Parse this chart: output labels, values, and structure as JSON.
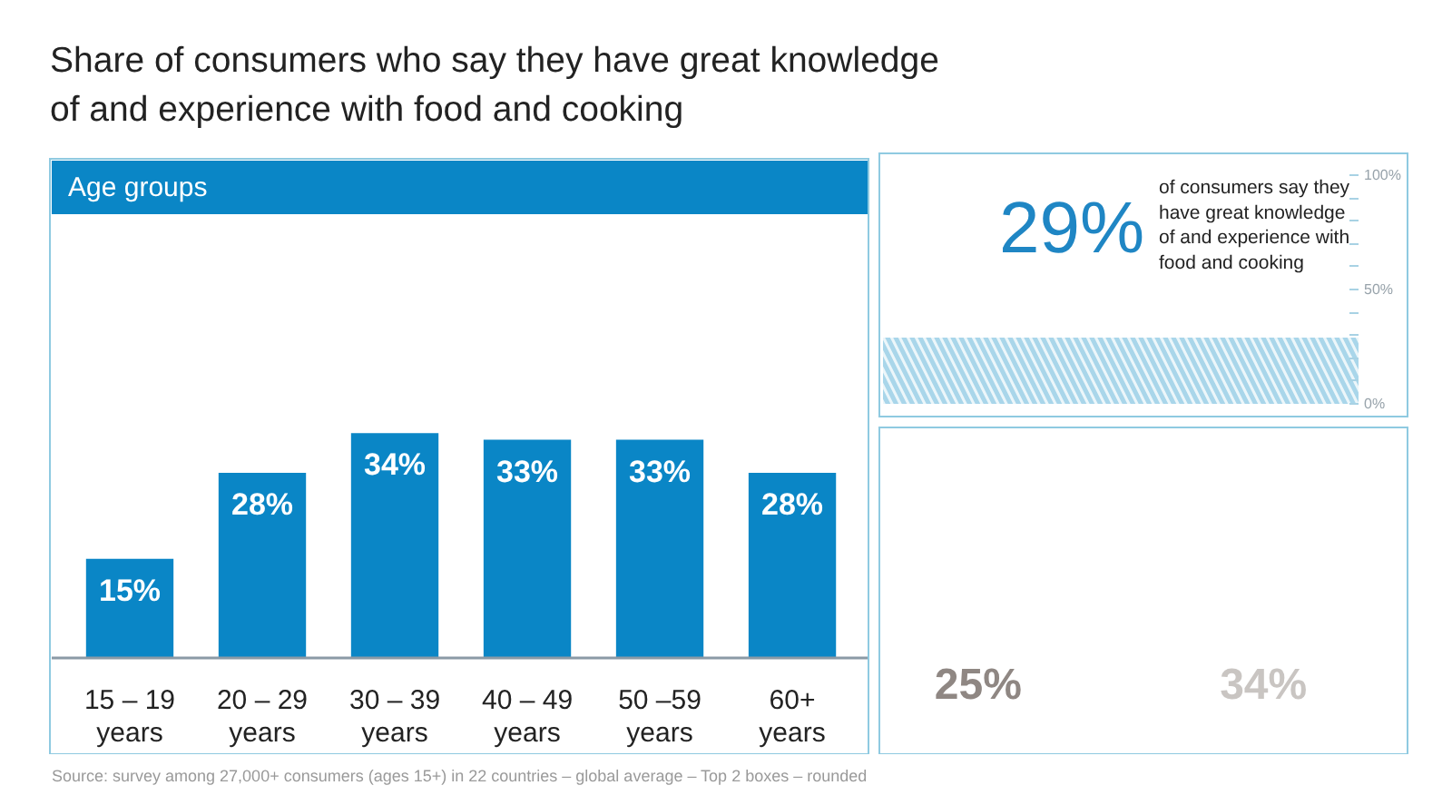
{
  "chart_data": [
    {
      "type": "bar",
      "title": "Share of consumers who say they have great knowledge of and experience with food and cooking",
      "subtitle": "Age groups",
      "categories": [
        "15 – 19 years",
        "20 – 29 years",
        "30 – 39 years",
        "40 – 49 years",
        "50 –59 years",
        "60+ years"
      ],
      "values": [
        15,
        28,
        34,
        33,
        33,
        28
      ],
      "value_labels": [
        "15%",
        "28%",
        "34%",
        "33%",
        "33%",
        "28%"
      ],
      "color": "#0a86c6",
      "tick_labels": "x",
      "annotations": [
        "Source: survey among 27,000+ consumers (ages 15+) in 22 countries – global average – Top 2 boxes – rounded"
      ]
    },
    {
      "type": "bar",
      "categories": [
        null
      ],
      "values": [
        29
      ],
      "value_labels": [
        "29%"
      ],
      "color": "#a9d6ea",
      "ylim": [
        0,
        100
      ],
      "yticks": [
        {
          "value": 0,
          "label": "0%"
        },
        {
          "value": 10,
          "label": null
        },
        {
          "value": 20,
          "label": null
        },
        {
          "value": 30,
          "label": null
        },
        {
          "value": 40,
          "label": null
        },
        {
          "value": 50,
          "label": "50%"
        },
        {
          "value": 60,
          "label": null
        },
        {
          "value": 70,
          "label": null
        },
        {
          "value": 80,
          "label": null
        },
        {
          "value": 90,
          "label": null
        },
        {
          "value": 100,
          "label": "100%"
        }
      ],
      "tick_labels": "y",
      "annotations": [
        "of consumers say they have great knowledge of and experience with food and cooking"
      ]
    },
    {
      "type": "other",
      "categories": [
        null,
        null
      ],
      "values": [
        25,
        34
      ],
      "value_labels": [
        "25%",
        "34%"
      ]
    }
  ]
}
